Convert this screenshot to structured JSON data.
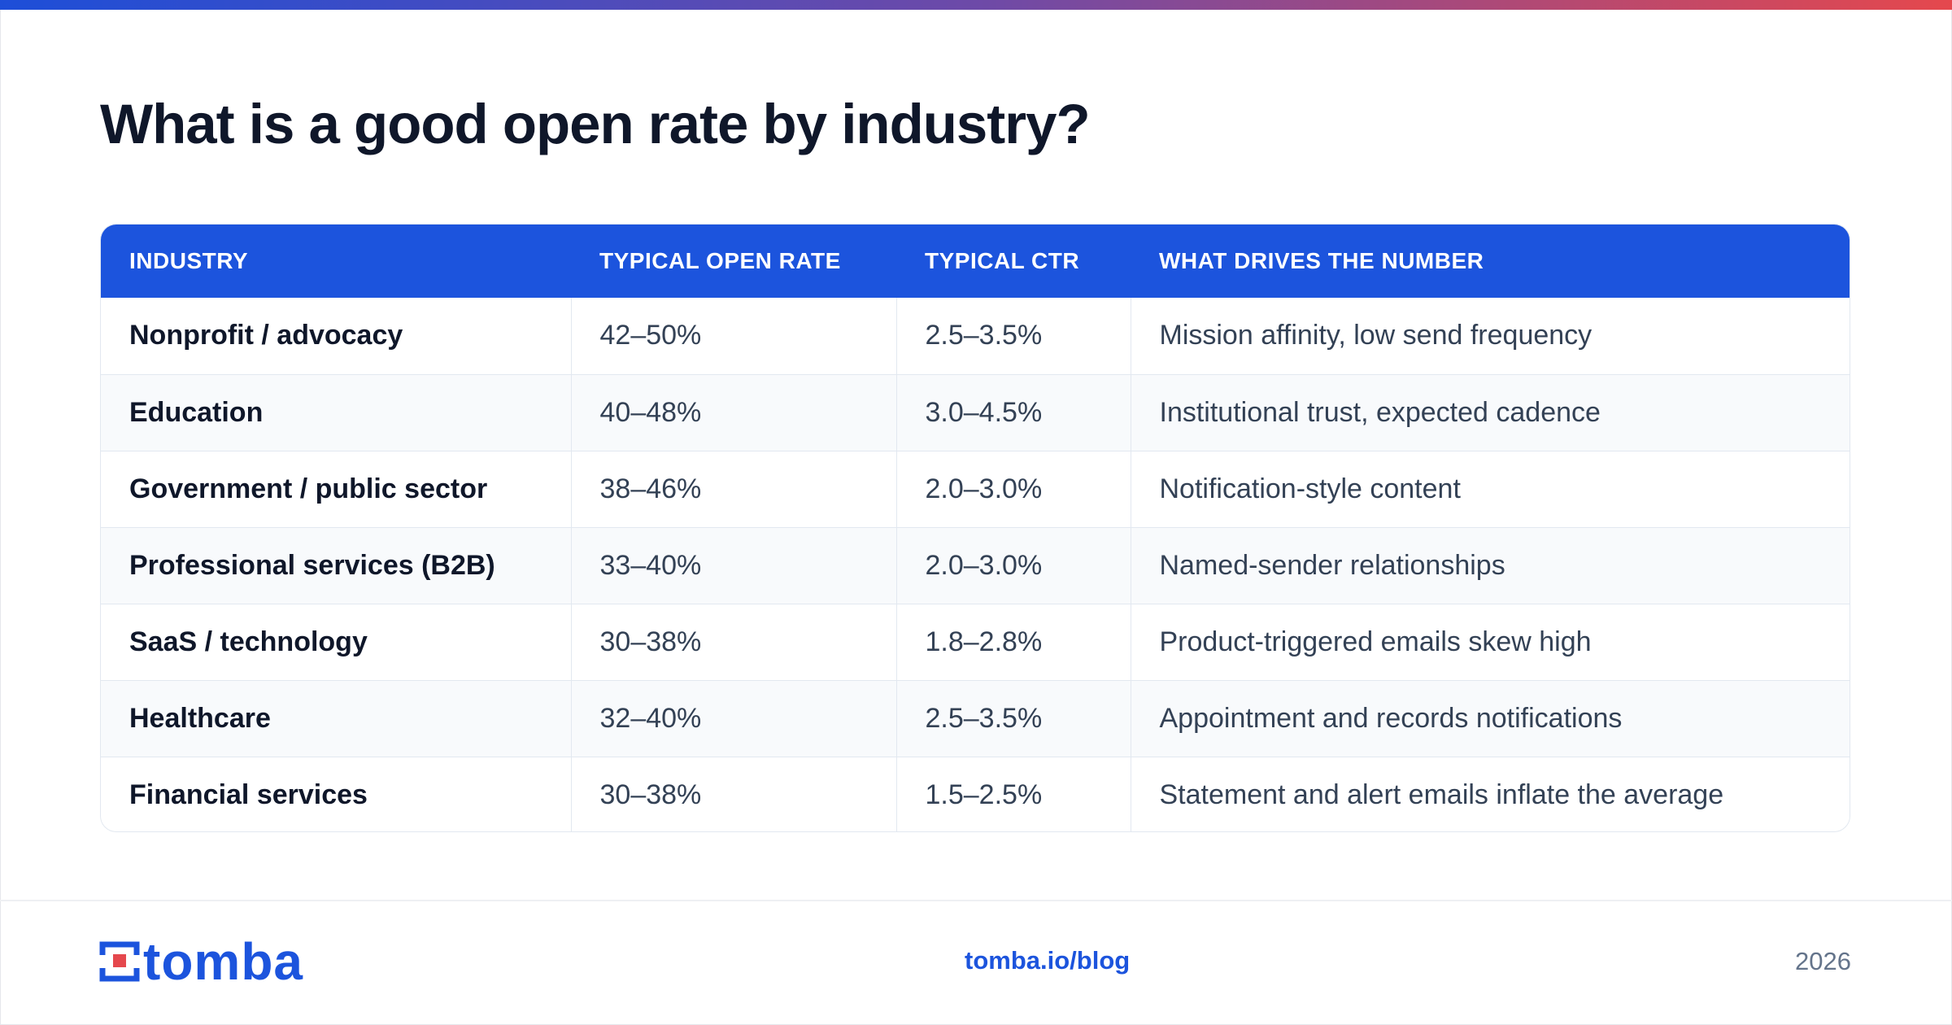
{
  "title": "What is a good open rate by industry?",
  "accent_color": "#1c54dd",
  "table": {
    "headers": [
      "INDUSTRY",
      "TYPICAL OPEN RATE",
      "TYPICAL CTR",
      "WHAT DRIVES THE NUMBER"
    ],
    "rows": [
      [
        "Nonprofit / advocacy",
        "42–50%",
        "2.5–3.5%",
        "Mission affinity, low send frequency"
      ],
      [
        "Education",
        "40–48%",
        "3.0–4.5%",
        "Institutional trust, expected cadence"
      ],
      [
        "Government / public sector",
        "38–46%",
        "2.0–3.0%",
        "Notification-style content"
      ],
      [
        "Professional services (B2B)",
        "33–40%",
        "2.0–3.0%",
        "Named-sender relationships"
      ],
      [
        "SaaS / technology",
        "30–38%",
        "1.8–2.8%",
        "Product-triggered emails skew high"
      ],
      [
        "Healthcare",
        "32–40%",
        "2.5–3.5%",
        "Appointment and records notifications"
      ],
      [
        "Financial services",
        "30–38%",
        "1.5–2.5%",
        "Statement and alert emails inflate the average"
      ]
    ]
  },
  "footer": {
    "logo_text": "tomba",
    "link": "tomba.io/blog",
    "year": "2026"
  }
}
